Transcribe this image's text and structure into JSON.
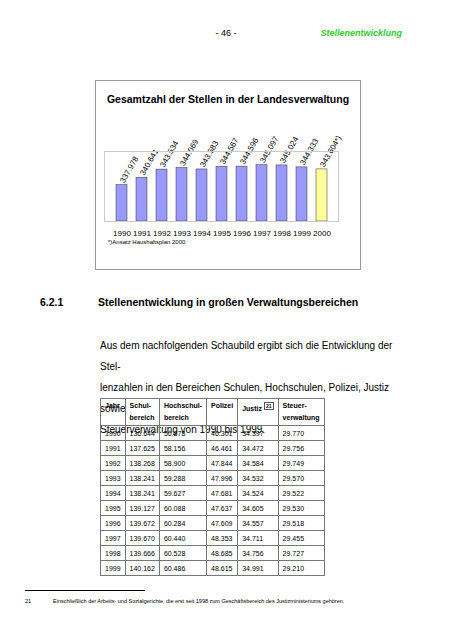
{
  "header": {
    "page": "- 46 -",
    "section": "Stellenentwicklung"
  },
  "chart_data": {
    "type": "bar",
    "title": "Gesamtzahl der Stellen in der Landesverwaltung",
    "categories": [
      "1990",
      "1991",
      "1992",
      "1993",
      "1994",
      "1995",
      "1996",
      "1997",
      "1998",
      "1999",
      "2000"
    ],
    "values": [
      337978,
      340641,
      343534,
      344069,
      343583,
      344567,
      344596,
      345097,
      345024,
      344333,
      343604
    ],
    "value_labels": [
      "337.978",
      "340.641",
      "343.534",
      "344.069",
      "343.583",
      "344.567",
      "344.596",
      "345.097",
      "345.024",
      "344.333",
      "343.604*)"
    ],
    "colors": [
      "#9999ff",
      "#9999ff",
      "#9999ff",
      "#9999ff",
      "#9999ff",
      "#9999ff",
      "#9999ff",
      "#9999ff",
      "#9999ff",
      "#9999ff",
      "#ffff99"
    ],
    "ylim": [
      325000,
      350000
    ],
    "tick_labels": "x",
    "data_labels": true,
    "note": "*)Ansatz Haushaltsplan 2000"
  },
  "section": {
    "number": "6.2.1",
    "title": "Stellenentwicklung in großen Verwaltungsbereichen",
    "paragraph": [
      "Aus dem nachfolgenden Schaubild ergibt sich die Entwicklung der Stel-",
      "lenzahlen in den Bereichen Schulen, Hochschulen, Polizei, Justiz sowie",
      "Steuerverwaltung von 1990 bis 1999."
    ]
  },
  "table": {
    "header": [
      [
        "Jahr"
      ],
      [
        "Schul-",
        "bereich"
      ],
      [
        "Hochschul-",
        "bereich"
      ],
      [
        "Polizei"
      ],
      [
        "Justiz"
      ],
      [
        "Steuer-",
        "verwaltung"
      ]
    ],
    "header_footnote": {
      "column": 4,
      "mark": "21"
    },
    "rows": [
      [
        "1990",
        "136.644",
        "56.878",
        "46.301",
        "34.397",
        "29.770"
      ],
      [
        "1991",
        "137.625",
        "58.156",
        "46.461",
        "34.472",
        "29.756"
      ],
      [
        "1992",
        "138.268",
        "58.900",
        "47.844",
        "34.584",
        "29.749"
      ],
      [
        "1993",
        "138.241",
        "59.288",
        "47.996",
        "34.532",
        "29.570"
      ],
      [
        "1994",
        "138.241",
        "59.627",
        "47.681",
        "34.524",
        "29.522"
      ],
      [
        "1995",
        "139.127",
        "60.088",
        "47.637",
        "34.605",
        "29.530"
      ],
      [
        "1996",
        "139.672",
        "60.284",
        "47.609",
        "34.557",
        "29.518"
      ],
      [
        "1997",
        "139.670",
        "60.440",
        "48.353",
        "34.711",
        "29.455"
      ],
      [
        "1998",
        "139.666",
        "60.528",
        "48.685",
        "34.756",
        "29.727"
      ],
      [
        "1999",
        "140.162",
        "60.486",
        "48.615",
        "34.991",
        "29.210"
      ]
    ]
  },
  "footnote": {
    "mark": "21",
    "text": "Einschließlich der Arbeits- und Sozialgerichte, die erst seit 1998 zum Geschäftsbereich des Justizministeriums gehören."
  }
}
